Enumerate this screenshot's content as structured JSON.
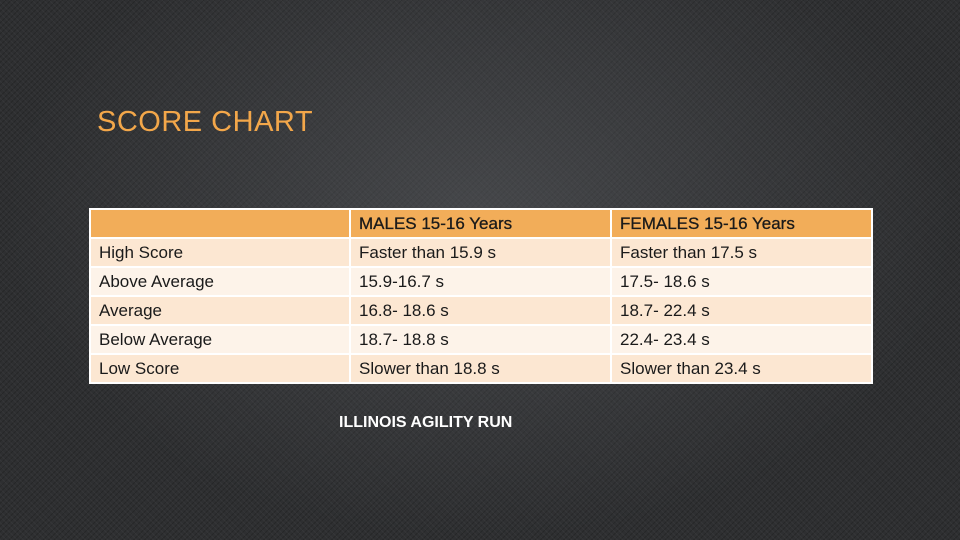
{
  "slide": {
    "title": "SCORE CHART",
    "caption": "ILLINOIS AGILITY RUN"
  },
  "table": {
    "headers": [
      "",
      "MALES 15-16 Years",
      "FEMALES 15-16 Years"
    ],
    "rows": [
      [
        "High Score",
        "Faster than 15.9 s",
        "Faster than 17.5 s"
      ],
      [
        "Above Average",
        "15.9-16.7 s",
        "17.5- 18.6 s"
      ],
      [
        "Average",
        "16.8- 18.6 s",
        "18.7- 22.4 s"
      ],
      [
        "Below Average",
        "18.7- 18.8 s",
        "22.4- 23.4 s"
      ],
      [
        "Low Score",
        "Slower than 18.8 s",
        "Slower than 23.4 s"
      ]
    ]
  },
  "colors": {
    "title": "#f3a74a",
    "header_fill": "#f2ad59",
    "row_fill_dark": "#fce7d2",
    "row_fill_light": "#fdf3e9",
    "caption": "#ffffff"
  }
}
